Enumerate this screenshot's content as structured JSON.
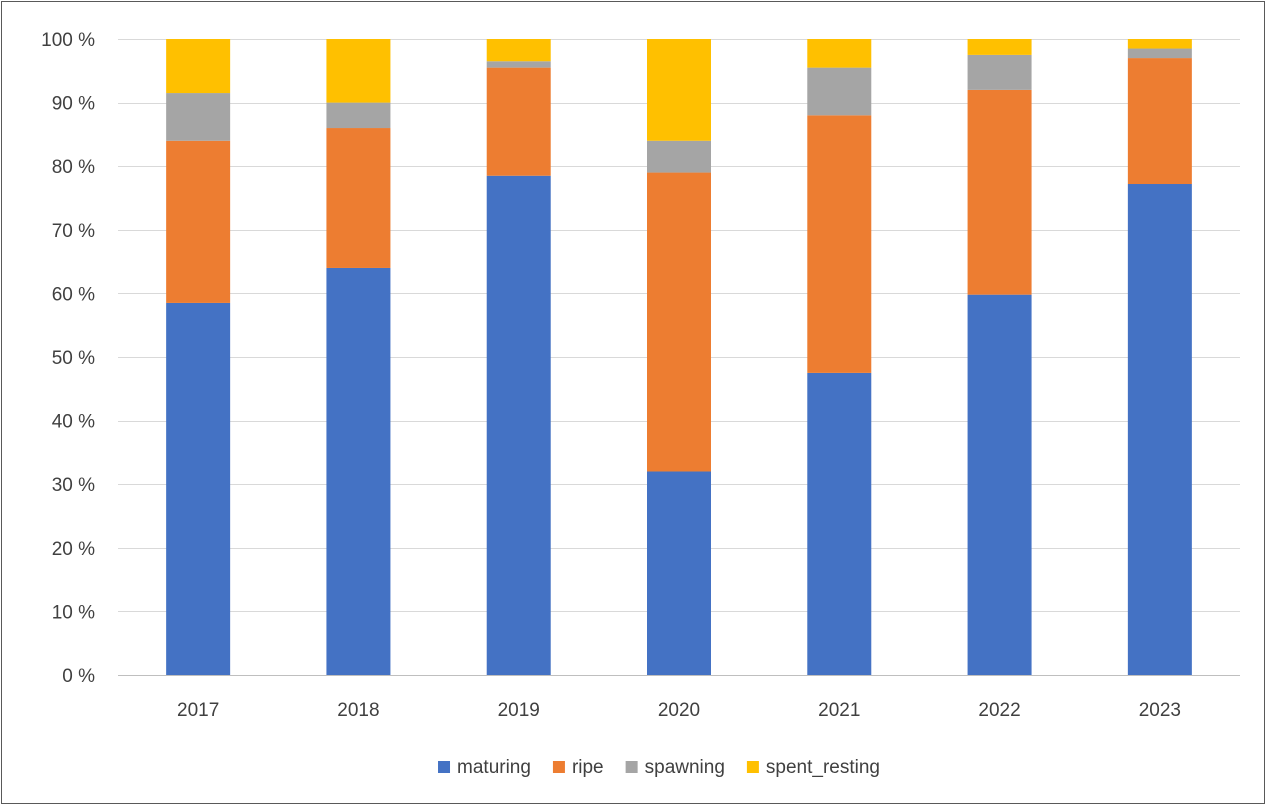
{
  "chart_data": {
    "type": "bar",
    "stacked": true,
    "title": "",
    "xlabel": "",
    "ylabel": "",
    "ylim": [
      0,
      100
    ],
    "y_unit": "%",
    "yticks": [
      0,
      10,
      20,
      30,
      40,
      50,
      60,
      70,
      80,
      90,
      100
    ],
    "ytick_labels": [
      "0 %",
      "10 %",
      "20 %",
      "30 %",
      "40 %",
      "50 %",
      "60 %",
      "70 %",
      "80 %",
      "90 %",
      "100 %"
    ],
    "grid": true,
    "legend_position": "bottom",
    "categories": [
      "2017",
      "2018",
      "2019",
      "2020",
      "2021",
      "2022",
      "2023"
    ],
    "series": [
      {
        "name": "maturing",
        "color": "#4472C4",
        "values": [
          58.5,
          64,
          78.5,
          32,
          47.5,
          59.8,
          77.2
        ]
      },
      {
        "name": "ripe",
        "color": "#ED7D31",
        "values": [
          25.5,
          22,
          17,
          47,
          40.5,
          32.2,
          19.8
        ]
      },
      {
        "name": "spawning",
        "color": "#A5A5A5",
        "values": [
          7.5,
          4,
          1,
          5,
          7.5,
          5.5,
          1.5
        ]
      },
      {
        "name": "spent_resting",
        "color": "#FFC000",
        "values": [
          8.5,
          10,
          3.5,
          16,
          4.5,
          2.5,
          1.5
        ]
      }
    ]
  }
}
